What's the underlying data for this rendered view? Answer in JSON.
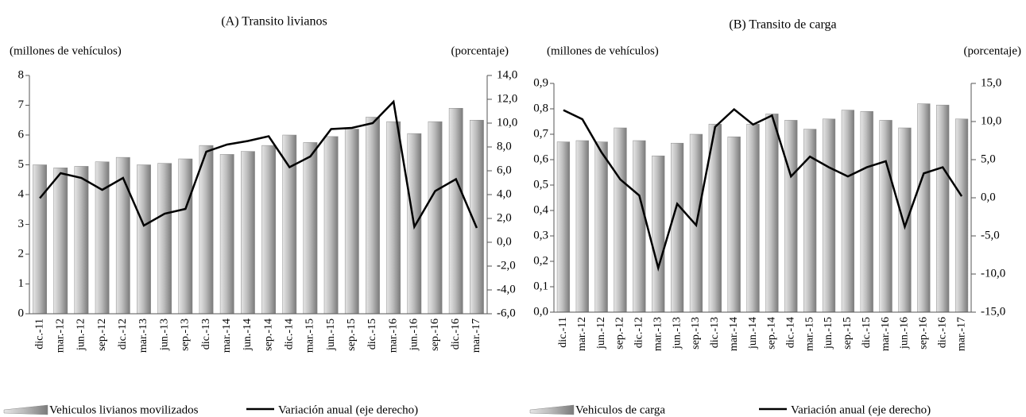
{
  "chart_data": [
    {
      "type": "combo",
      "title": "(A) Transito livianos",
      "y_label": "(millones de vehículos)",
      "y2_label": "(porcentaje)",
      "categories": [
        "dic.-11",
        "mar.-12",
        "jun.-12",
        "sep.-12",
        "dic.-12",
        "mar.-13",
        "jun.-13",
        "sep.-13",
        "dic.-13",
        "mar.-14",
        "jun.-14",
        "sep.-14",
        "dic.-14",
        "mar.-15",
        "jun.-15",
        "sep.-15",
        "dic.-15",
        "mar.-16",
        "jun.-16",
        "sep.-16",
        "dic.-16",
        "mar.-17"
      ],
      "series": [
        {
          "name": "Vehiculos livianos movilizados",
          "kind": "bar",
          "color": "#a6a6a6",
          "values": [
            5.0,
            4.9,
            4.95,
            5.1,
            5.25,
            5.0,
            5.05,
            5.2,
            5.65,
            5.35,
            5.45,
            5.65,
            6.0,
            5.75,
            5.95,
            6.2,
            6.6,
            6.45,
            6.05,
            6.45,
            6.9,
            6.5
          ]
        },
        {
          "name": "Variación anual (eje derecho)",
          "kind": "line",
          "axis": "y2",
          "color": "#000000",
          "values": [
            3.7,
            5.8,
            5.4,
            4.4,
            5.4,
            1.4,
            2.4,
            2.8,
            7.6,
            8.2,
            8.5,
            8.9,
            6.3,
            7.2,
            9.5,
            9.6,
            10.0,
            11.8,
            1.3,
            4.3,
            5.3,
            1.2
          ]
        }
      ],
      "ylim": [
        0,
        8
      ],
      "yticks": [
        0,
        1,
        2,
        3,
        4,
        5,
        6,
        7,
        8
      ],
      "y2lim": [
        -6,
        14
      ],
      "y2ticks": [
        {
          "value": -6,
          "label": "-6,0"
        },
        {
          "value": -4,
          "label": "-4,0"
        },
        {
          "value": -2,
          "label": "-2,0"
        },
        {
          "value": 0,
          "label": "0,0"
        },
        {
          "value": 2,
          "label": "2,0"
        },
        {
          "value": 4,
          "label": "4,0"
        },
        {
          "value": 6,
          "label": "6,0"
        },
        {
          "value": 8,
          "label": "8,0"
        },
        {
          "value": 10,
          "label": "10,0"
        },
        {
          "value": 12,
          "label": "12,0"
        },
        {
          "value": 14,
          "label": "14,0"
        }
      ]
    },
    {
      "type": "combo",
      "title": "(B) Transito de carga",
      "y_label": "(millones de vehículos)",
      "y2_label": "(porcentaje)",
      "categories": [
        "dic.-11",
        "mar.-12",
        "jun.-12",
        "sep.-12",
        "dic.-12",
        "mar.-13",
        "jun.-13",
        "sep.-13",
        "dic.-13",
        "mar.-14",
        "jun.-14",
        "sep.-14",
        "dic.-14",
        "mar.-15",
        "jun.-15",
        "sep.-15",
        "dic.-15",
        "mar.-16",
        "jun.-16",
        "sep.-16",
        "dic.-16",
        "mar.-17"
      ],
      "series": [
        {
          "name": "Vehiculos de carga",
          "kind": "bar",
          "color": "#a6a6a6",
          "values": [
            0.67,
            0.675,
            0.67,
            0.725,
            0.675,
            0.615,
            0.665,
            0.7,
            0.74,
            0.69,
            0.74,
            0.78,
            0.755,
            0.72,
            0.76,
            0.795,
            0.79,
            0.755,
            0.725,
            0.82,
            0.815,
            0.76
          ]
        },
        {
          "name": "Variación anual (eje derecho)",
          "kind": "line",
          "axis": "y2",
          "color": "#000000",
          "values": [
            11.5,
            10.3,
            6.0,
            2.4,
            0.3,
            -9.2,
            -0.8,
            -3.6,
            9.3,
            11.6,
            9.6,
            10.8,
            2.8,
            5.4,
            4.0,
            2.8,
            4.0,
            4.8,
            -3.8,
            3.2,
            4.0,
            0.2
          ]
        }
      ],
      "ylim": [
        0,
        0.9
      ],
      "yticks": [
        {
          "value": 0,
          "label": "0,0"
        },
        {
          "value": 0.1,
          "label": "0,1"
        },
        {
          "value": 0.2,
          "label": "0,2"
        },
        {
          "value": 0.3,
          "label": "0,3"
        },
        {
          "value": 0.4,
          "label": "0,4"
        },
        {
          "value": 0.5,
          "label": "0,5"
        },
        {
          "value": 0.6,
          "label": "0,6"
        },
        {
          "value": 0.7,
          "label": "0,7"
        },
        {
          "value": 0.8,
          "label": "0,8"
        },
        {
          "value": 0.9,
          "label": "0,9"
        }
      ],
      "y2lim": [
        -15,
        15
      ],
      "y2ticks": [
        {
          "value": -15,
          "label": "-15,0"
        },
        {
          "value": -10,
          "label": "-10,0"
        },
        {
          "value": -5,
          "label": "-5,0"
        },
        {
          "value": 0,
          "label": "0,0"
        },
        {
          "value": 5,
          "label": "5,0"
        },
        {
          "value": 10,
          "label": "10,0"
        },
        {
          "value": 15,
          "label": "15,0"
        }
      ]
    }
  ]
}
